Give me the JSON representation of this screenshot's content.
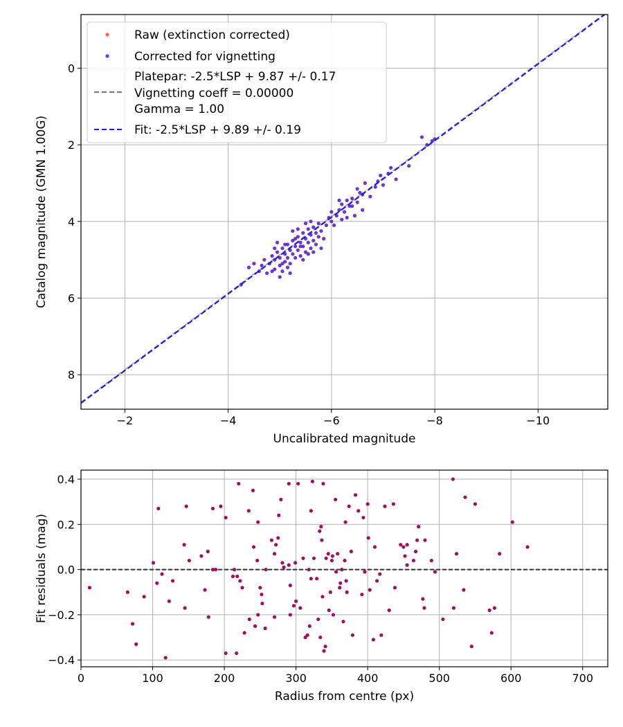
{
  "colors": {
    "raw": "#ff3b30",
    "corrected": "#1f1fff",
    "residual": "#a01060",
    "fit_line": "#2020d0",
    "platepar_line": "#777777",
    "zero_line": "#333333",
    "grid": "#b0b0b0"
  },
  "chart_data": [
    {
      "type": "scatter",
      "xlabel": "Uncalibrated magnitude",
      "ylabel": "Catalog magnitude (GMN 1.00G)",
      "xlim": [
        -1.15,
        -11.35
      ],
      "ylim": [
        -1.4,
        8.9
      ],
      "xticks": [
        -2,
        -4,
        -6,
        -8,
        -10
      ],
      "xtick_labels": [
        "−2",
        "−4",
        "−6",
        "−8",
        "−10"
      ],
      "yticks": [
        0,
        2,
        4,
        6,
        8
      ],
      "ytick_labels": [
        "0",
        "2",
        "4",
        "6",
        "8"
      ],
      "legend": {
        "position": "top-left",
        "entries": [
          {
            "kind": "point",
            "color": "#ff3b30",
            "label": "Raw (extinction corrected)"
          },
          {
            "kind": "point",
            "color": "#1f1fff",
            "label": "Corrected for vignetting"
          },
          {
            "kind": "dash",
            "color": "#777777",
            "lines": [
              "Platepar: -2.5*LSP + 9.87 +/- 0.17",
              "Vignetting coeff = 0.00000",
              "Gamma = 1.00"
            ]
          },
          {
            "kind": "dash",
            "color": "#2020d0",
            "label": "Fit: -2.5*LSP + 9.89 +/- 0.19"
          }
        ]
      },
      "series": [
        {
          "name": "Corrected for vignetting",
          "points": [
            [
              -4.4,
              5.2
            ],
            [
              -4.25,
              5.65
            ],
            [
              -4.5,
              5.1
            ],
            [
              -4.6,
              5.3
            ],
            [
              -4.7,
              5.0
            ],
            [
              -4.75,
              5.35
            ],
            [
              -4.8,
              5.1
            ],
            [
              -4.85,
              4.9
            ],
            [
              -4.9,
              5.25
            ],
            [
              -4.9,
              5.0
            ],
            [
              -4.95,
              4.8
            ],
            [
              -5.0,
              5.15
            ],
            [
              -5.0,
              4.95
            ],
            [
              -5.05,
              4.7
            ],
            [
              -5.05,
              5.3
            ],
            [
              -5.1,
              4.85
            ],
            [
              -5.1,
              5.05
            ],
            [
              -5.15,
              4.6
            ],
            [
              -5.15,
              4.95
            ],
            [
              -5.2,
              4.75
            ],
            [
              -5.2,
              5.1
            ],
            [
              -5.25,
              4.5
            ],
            [
              -5.25,
              4.85
            ],
            [
              -5.3,
              4.65
            ],
            [
              -5.3,
              4.95
            ],
            [
              -5.35,
              4.4
            ],
            [
              -5.35,
              4.75
            ],
            [
              -5.4,
              4.55
            ],
            [
              -5.4,
              4.9
            ],
            [
              -5.45,
              4.3
            ],
            [
              -5.45,
              4.65
            ],
            [
              -5.5,
              4.45
            ],
            [
              -5.5,
              4.8
            ],
            [
              -5.55,
              4.2
            ],
            [
              -5.55,
              4.55
            ],
            [
              -5.6,
              4.35
            ],
            [
              -5.6,
              4.7
            ],
            [
              -5.65,
              4.15
            ],
            [
              -5.65,
              4.5
            ],
            [
              -5.7,
              4.3
            ],
            [
              -5.7,
              4.6
            ],
            [
              -5.75,
              4.05
            ],
            [
              -5.8,
              4.25
            ],
            [
              -5.85,
              4.45
            ],
            [
              -5.9,
              4.1
            ],
            [
              -5.95,
              3.9
            ],
            [
              -6.0,
              4.0
            ],
            [
              -6.1,
              3.85
            ],
            [
              -6.15,
              3.7
            ],
            [
              -6.2,
              3.55
            ],
            [
              -6.25,
              3.75
            ],
            [
              -6.3,
              3.45
            ],
            [
              -6.35,
              3.6
            ],
            [
              -6.4,
              3.4
            ],
            [
              -6.45,
              3.85
            ],
            [
              -6.5,
              3.5
            ],
            [
              -6.55,
              3.25
            ],
            [
              -6.6,
              3.7
            ],
            [
              -6.65,
              3.0
            ],
            [
              -6.75,
              3.35
            ],
            [
              -6.85,
              3.1
            ],
            [
              -6.95,
              2.8
            ],
            [
              -7.0,
              3.05
            ],
            [
              -7.1,
              2.75
            ],
            [
              -7.15,
              2.6
            ],
            [
              -7.5,
              2.55
            ],
            [
              -7.75,
              1.8
            ],
            [
              -7.85,
              2.0
            ],
            [
              -7.95,
              1.9
            ],
            [
              -8.0,
              1.85
            ],
            [
              -5.0,
              5.45
            ],
            [
              -5.2,
              5.35
            ],
            [
              -4.85,
              5.3
            ],
            [
              -5.6,
              4.0
            ],
            [
              -5.8,
              4.7
            ],
            [
              -6.05,
              4.1
            ],
            [
              -6.3,
              3.9
            ],
            [
              -5.35,
              4.2
            ],
            [
              -4.95,
              4.55
            ],
            [
              -5.55,
              4.85
            ],
            [
              -4.65,
              5.15
            ],
            [
              -5.15,
              5.2
            ],
            [
              -5.45,
              5.0
            ],
            [
              -5.75,
              4.4
            ],
            [
              -6.0,
              3.75
            ],
            [
              -6.2,
              3.95
            ],
            [
              -6.4,
              3.6
            ],
            [
              -6.6,
              3.3
            ],
            [
              -6.9,
              2.95
            ],
            [
              -5.3,
              4.45
            ],
            [
              -5.1,
              4.6
            ],
            [
              -5.25,
              4.25
            ],
            [
              -5.5,
              4.05
            ],
            [
              -4.9,
              4.7
            ],
            [
              -5.65,
              4.8
            ],
            [
              -6.15,
              3.45
            ],
            [
              -6.5,
              3.15
            ],
            [
              -7.25,
              2.9
            ],
            [
              -5.05,
              5.1
            ],
            [
              -5.4,
              4.65
            ]
          ]
        },
        {
          "name": "Fit: -2.5*LSP + 9.89 +/- 0.19",
          "line_start": [
            -1.15,
            8.74
          ],
          "line_end": [
            -11.35,
            -1.46
          ]
        }
      ]
    },
    {
      "type": "scatter",
      "xlabel": "Radius from centre (px)",
      "ylabel": "Fit residuals (mag)",
      "xlim": [
        0,
        735
      ],
      "ylim": [
        -0.43,
        0.44
      ],
      "xticks": [
        0,
        100,
        200,
        300,
        400,
        500,
        600,
        700
      ],
      "xtick_labels": [
        "0",
        "100",
        "200",
        "300",
        "400",
        "500",
        "600",
        "700"
      ],
      "yticks": [
        -0.4,
        -0.2,
        0.0,
        0.2,
        0.4
      ],
      "ytick_labels": [
        "−0.4",
        "−0.2",
        "0.0",
        "0.2",
        "0.4"
      ],
      "reference_line": 0.0,
      "series": [
        {
          "name": "Residuals",
          "points": [
            [
              12,
              -0.08
            ],
            [
              65,
              -0.1
            ],
            [
              72,
              -0.24
            ],
            [
              77,
              -0.33
            ],
            [
              88,
              -0.12
            ],
            [
              101,
              0.03
            ],
            [
              106,
              -0.06
            ],
            [
              108,
              0.27
            ],
            [
              113,
              -0.02
            ],
            [
              118,
              -0.39
            ],
            [
              123,
              -0.14
            ],
            [
              128,
              -0.05
            ],
            [
              144,
              0.11
            ],
            [
              145,
              -0.17
            ],
            [
              147,
              0.28
            ],
            [
              151,
              0.04
            ],
            [
              168,
              0.06
            ],
            [
              173,
              -0.09
            ],
            [
              178,
              -0.21
            ],
            [
              177,
              0.08
            ],
            [
              184,
              0.0
            ],
            [
              184,
              0.27
            ],
            [
              195,
              0.28
            ],
            [
              202,
              0.23
            ],
            [
              202,
              -0.37
            ],
            [
              214,
              0.0
            ],
            [
              217,
              -0.37
            ],
            [
              218,
              -0.03
            ],
            [
              220,
              0.38
            ],
            [
              222,
              -0.05
            ],
            [
              225,
              -0.08
            ],
            [
              228,
              -0.28
            ],
            [
              234,
              0.26
            ],
            [
              235,
              -0.22
            ],
            [
              240,
              0.35
            ],
            [
              241,
              0.1
            ],
            [
              243,
              -0.25
            ],
            [
              247,
              0.21
            ],
            [
              246,
              0.04
            ],
            [
              247,
              -0.2
            ],
            [
              250,
              -0.08
            ],
            [
              252,
              -0.11
            ],
            [
              253,
              -0.15
            ],
            [
              257,
              -0.26
            ],
            [
              266,
              0.13
            ],
            [
              270,
              -0.21
            ],
            [
              270,
              0.07
            ],
            [
              272,
              0.11
            ],
            [
              275,
              0.14
            ],
            [
              276,
              0.24
            ],
            [
              279,
              0.31
            ],
            [
              281,
              0.03
            ],
            [
              283,
              0.01
            ],
            [
              290,
              0.38
            ],
            [
              290,
              0.02
            ],
            [
              292,
              -0.07
            ],
            [
              292,
              -0.2
            ],
            [
              297,
              -0.16
            ],
            [
              299,
              0.03
            ],
            [
              300,
              -0.14
            ],
            [
              303,
              0.38
            ],
            [
              306,
              -0.17
            ],
            [
              310,
              0.05
            ],
            [
              313,
              -0.3
            ],
            [
              316,
              -0.29
            ],
            [
              318,
              0.0
            ],
            [
              319,
              -0.25
            ],
            [
              321,
              -0.04
            ],
            [
              321,
              0.26
            ],
            [
              323,
              0.39
            ],
            [
              325,
              0.05
            ],
            [
              329,
              -0.04
            ],
            [
              331,
              -0.22
            ],
            [
              333,
              0.17
            ],
            [
              334,
              -0.3
            ],
            [
              335,
              0.19
            ],
            [
              336,
              0.13
            ],
            [
              338,
              0.38
            ],
            [
              339,
              -0.36
            ],
            [
              341,
              -0.34
            ],
            [
              342,
              0.05
            ],
            [
              345,
              0.07
            ],
            [
              346,
              -0.18
            ],
            [
              348,
              -0.1
            ],
            [
              350,
              0.04
            ],
            [
              351,
              0.06
            ],
            [
              352,
              -0.2
            ],
            [
              355,
              0.31
            ],
            [
              356,
              -0.01
            ],
            [
              358,
              0.07
            ],
            [
              361,
              -0.08
            ],
            [
              362,
              -0.06
            ],
            [
              364,
              0.0
            ],
            [
              366,
              -0.23
            ],
            [
              368,
              0.04
            ],
            [
              369,
              0.21
            ],
            [
              370,
              -0.05
            ],
            [
              374,
              0.28
            ],
            [
              377,
              0.08
            ],
            [
              379,
              -0.29
            ],
            [
              383,
              0.33
            ],
            [
              387,
              0.26
            ],
            [
              392,
              -0.11
            ],
            [
              394,
              0.23
            ],
            [
              396,
              -0.01
            ],
            [
              400,
              0.29
            ],
            [
              401,
              0.14
            ],
            [
              403,
              -0.09
            ],
            [
              408,
              -0.31
            ],
            [
              410,
              0.1
            ],
            [
              413,
              -0.05
            ],
            [
              417,
              -0.02
            ],
            [
              419,
              -0.29
            ],
            [
              424,
              0.28
            ],
            [
              430,
              -0.18
            ],
            [
              436,
              0.29
            ],
            [
              438,
              -0.08
            ],
            [
              446,
              0.11
            ],
            [
              450,
              0.1
            ],
            [
              452,
              0.06
            ],
            [
              455,
              0.02
            ],
            [
              464,
              0.04
            ],
            [
              467,
              0.08
            ],
            [
              469,
              0.13
            ],
            [
              471,
              0.19
            ],
            [
              477,
              -0.13
            ],
            [
              479,
              -0.17
            ],
            [
              480,
              0.13
            ],
            [
              489,
              0.04
            ],
            [
              494,
              -0.01
            ],
            [
              505,
              -0.22
            ],
            [
              519,
              0.4
            ],
            [
              520,
              -0.17
            ],
            [
              524,
              0.07
            ],
            [
              534,
              -0.09
            ],
            [
              536,
              0.32
            ],
            [
              545,
              -0.34
            ],
            [
              550,
              0.29
            ],
            [
              570,
              -0.18
            ],
            [
              573,
              -0.28
            ],
            [
              577,
              -0.17
            ],
            [
              584,
              0.07
            ],
            [
              602,
              0.21
            ],
            [
              623,
              0.1
            ],
            [
              258,
              0.0
            ],
            [
              371,
              -0.1
            ],
            [
              188,
              0.0
            ],
            [
              212,
              -0.03
            ],
            [
              455,
              0.11
            ],
            [
              337,
              -0.12
            ]
          ]
        }
      ]
    }
  ]
}
